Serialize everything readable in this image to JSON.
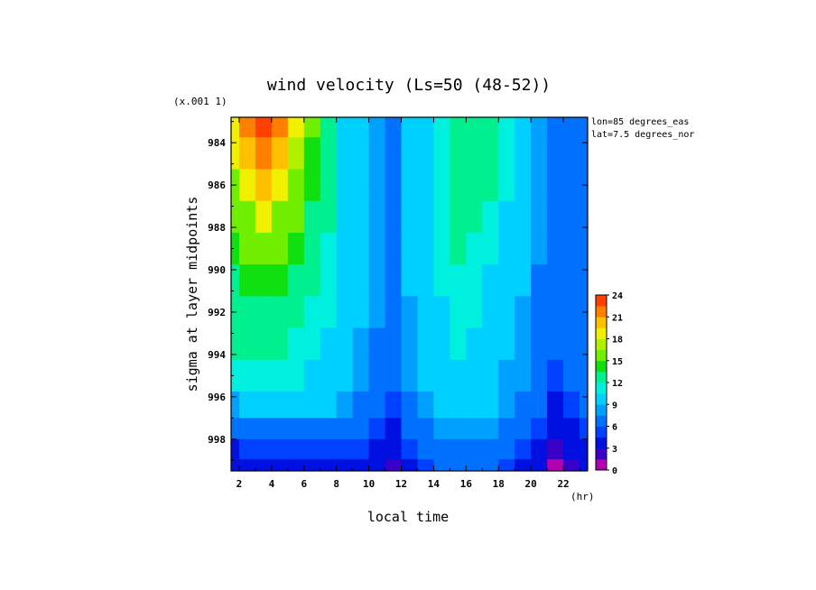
{
  "chart_data": {
    "type": "heatmap",
    "title": "wind velocity (Ls=50 (48-52))",
    "xlabel": "local time",
    "x_unit": "(hr)",
    "ylabel": "sigma at layer midpoints",
    "y_unit": "(x.001 1)",
    "annotations": [
      "lon=85 degrees_eas",
      "lat=7.5 degrees_nor"
    ],
    "xlim": [
      1.5,
      23.5
    ],
    "ylim": [
      999.5,
      982.8
    ],
    "x_ticks": [
      2,
      4,
      6,
      8,
      10,
      12,
      14,
      16,
      18,
      20,
      22
    ],
    "y_ticks": [
      984,
      986,
      988,
      990,
      992,
      994,
      996,
      998
    ],
    "colorbar": {
      "ticks": [
        0,
        3,
        6,
        9,
        12,
        15,
        18,
        21,
        24
      ],
      "levels": [
        0,
        1.5,
        3,
        4.5,
        6,
        7.5,
        9,
        10.5,
        12,
        13.5,
        15,
        16.5,
        18,
        19.5,
        21,
        22.5,
        24
      ],
      "colors": [
        "#b000b0",
        "#3a00c8",
        "#0010e0",
        "#0040ff",
        "#0070ff",
        "#00a0ff",
        "#00d0ff",
        "#00f0e0",
        "#00f090",
        "#10e010",
        "#70f000",
        "#b0f000",
        "#f0f000",
        "#ffc000",
        "#ff8000",
        "#ff4000"
      ]
    },
    "x": [
      1.5,
      2.5,
      3.5,
      4.5,
      5.5,
      6.5,
      7.5,
      8.5,
      9.5,
      10.5,
      11.5,
      12.5,
      13.5,
      14.5,
      15.5,
      16.5,
      17.5,
      18.5,
      19.5,
      20.5,
      21.5,
      22.5,
      23.5
    ],
    "y": [
      983.0,
      984.5,
      986.0,
      987.5,
      989.0,
      990.5,
      992.0,
      993.5,
      995.0,
      996.5,
      997.5,
      998.5,
      999.4
    ],
    "z": [
      [
        19,
        21,
        23,
        21,
        18,
        15,
        12,
        10,
        9,
        8,
        7,
        9,
        10,
        11,
        12,
        12,
        12,
        11,
        10,
        8,
        7,
        7,
        7
      ],
      [
        18,
        20,
        22,
        20,
        17,
        14,
        12,
        10,
        9,
        8,
        7,
        9,
        10,
        11,
        12,
        12,
        12,
        11,
        10,
        8,
        7,
        7,
        7
      ],
      [
        16,
        18,
        20,
        18,
        16,
        14,
        12,
        10,
        9,
        8,
        7,
        9,
        10,
        11,
        12,
        12,
        12,
        11,
        9,
        8,
        7,
        7,
        7
      ],
      [
        15,
        16,
        18,
        16,
        15,
        13,
        12,
        10,
        9,
        8,
        7,
        9,
        10,
        11,
        12,
        12,
        11,
        10,
        9,
        8,
        7,
        7,
        7
      ],
      [
        14,
        15,
        16,
        15,
        14,
        13,
        11,
        10,
        9,
        8,
        7,
        9,
        10,
        11,
        12,
        11,
        11,
        10,
        9,
        8,
        7,
        7,
        7
      ],
      [
        13,
        14,
        14,
        14,
        13,
        12,
        11,
        10,
        9,
        8,
        7,
        9,
        10,
        11,
        11,
        11,
        10,
        10,
        9,
        7,
        7,
        7,
        7
      ],
      [
        12,
        13,
        13,
        13,
        12,
        11,
        11,
        10,
        9,
        8,
        7,
        8,
        9,
        10,
        11,
        11,
        10,
        9,
        8,
        7,
        6,
        6,
        7
      ],
      [
        12,
        12,
        12,
        12,
        11,
        11,
        10,
        9,
        8,
        7,
        6,
        8,
        9,
        10,
        11,
        10,
        10,
        9,
        8,
        7,
        6,
        6,
        7
      ],
      [
        11,
        11,
        11,
        11,
        11,
        10,
        10,
        9,
        8,
        7,
        6,
        8,
        9,
        10,
        10,
        10,
        9,
        8,
        8,
        7,
        5,
        6,
        6
      ],
      [
        8,
        9,
        9,
        9,
        9,
        9,
        9,
        8,
        7,
        6,
        5,
        7,
        8,
        9,
        9,
        9,
        9,
        8,
        7,
        6,
        4,
        5,
        6
      ],
      [
        6,
        7,
        7,
        7,
        7,
        7,
        7,
        7,
        6,
        5,
        4,
        6,
        7,
        8,
        8,
        8,
        8,
        7,
        6,
        5,
        3,
        4,
        5
      ],
      [
        4,
        5,
        5,
        5,
        5,
        5,
        5,
        5,
        5,
        4,
        3,
        5,
        6,
        7,
        7,
        7,
        7,
        6,
        5,
        4,
        2,
        3,
        4
      ],
      [
        3,
        3,
        3,
        3,
        3,
        3,
        3,
        4,
        4,
        3,
        2,
        4,
        5,
        6,
        6,
        6,
        6,
        5,
        4,
        3,
        1,
        2,
        3
      ]
    ]
  }
}
